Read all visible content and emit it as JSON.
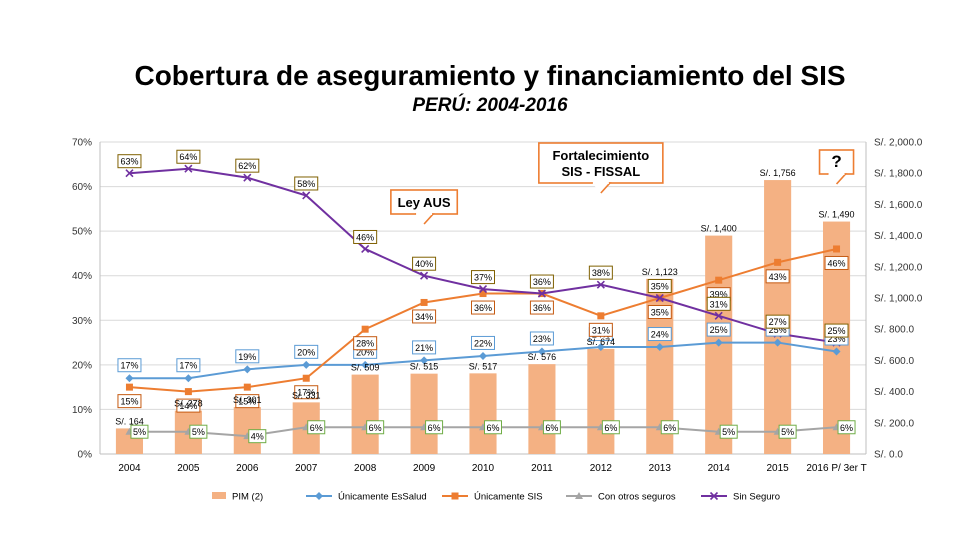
{
  "title": "Cobertura de aseguramiento y financiamiento del SIS",
  "subtitle": "PERÚ: 2004-2016",
  "colors": {
    "pim": "#F4B183",
    "essalud": "#5B9BD5",
    "sis": "#ED7D31",
    "otros": "#A5A5A5",
    "sinseguro": "#7030A0",
    "callout": "#ED7D31"
  },
  "annotations": [
    {
      "lines": [
        "Ley AUS"
      ],
      "category": "2009"
    },
    {
      "lines": [
        "Fortalecimiento",
        "SIS - FISSAL"
      ],
      "category": "2012"
    },
    {
      "lines": [
        "?"
      ],
      "category": "2016 P/ 3er T"
    }
  ],
  "chart_data": {
    "type": "bar",
    "categories": [
      "2004",
      "2005",
      "2006",
      "2007",
      "2008",
      "2009",
      "2010",
      "2011",
      "2012",
      "2013",
      "2014",
      "2015",
      "2016 P/ 3er T"
    ],
    "ylim_left": [
      0,
      70
    ],
    "left_ticks": [
      "0%",
      "10%",
      "20%",
      "30%",
      "40%",
      "50%",
      "60%",
      "70%"
    ],
    "ylim_right": [
      0,
      2000
    ],
    "right_ticks": [
      "S/. 0.0",
      "S/. 200.0",
      "S/. 400.0",
      "S/. 600.0",
      "S/. 800.0",
      "S/. 1,000.0",
      "S/. 1,200.0",
      "S/. 1,400.0",
      "S/. 1,600.0",
      "S/. 1,800.0",
      "S/. 2,000.0"
    ],
    "grid": true,
    "legend_position": "bottom",
    "bars": {
      "name": "PIM (2)",
      "axis": "right",
      "values": [
        164,
        278,
        301,
        331,
        509,
        515,
        517,
        576,
        674,
        1123,
        1400,
        1756,
        1490
      ],
      "labels": [
        "S/. 164",
        "S/. 278",
        "S/. 301",
        "S/. 331",
        "S/. 509",
        "S/. 515",
        "S/. 517",
        "S/. 576",
        "S/. 674",
        "S/. 1,123",
        "S/. 1,400",
        "S/. 1,756",
        "S/. 1,490"
      ]
    },
    "series": [
      {
        "name": "Únicamente EsSalud",
        "key": "essalud",
        "marker": "diamond",
        "values": [
          17,
          17,
          19,
          20,
          20,
          21,
          22,
          23,
          24,
          24,
          25,
          25,
          23
        ]
      },
      {
        "name": "Únicamente SIS",
        "key": "sis",
        "marker": "square",
        "values": [
          15,
          14,
          15,
          17,
          28,
          34,
          36,
          36,
          31,
          35,
          39,
          43,
          46
        ]
      },
      {
        "name": "Con otros seguros",
        "key": "otros",
        "marker": "triangle",
        "values": [
          5,
          5,
          4,
          6,
          6,
          6,
          6,
          6,
          6,
          6,
          5,
          5,
          6
        ]
      },
      {
        "name": "Sin Seguro",
        "key": "sinseguro",
        "marker": "x",
        "values": [
          63,
          64,
          62,
          58,
          46,
          40,
          37,
          36,
          38,
          35,
          31,
          27,
          25
        ]
      }
    ]
  }
}
